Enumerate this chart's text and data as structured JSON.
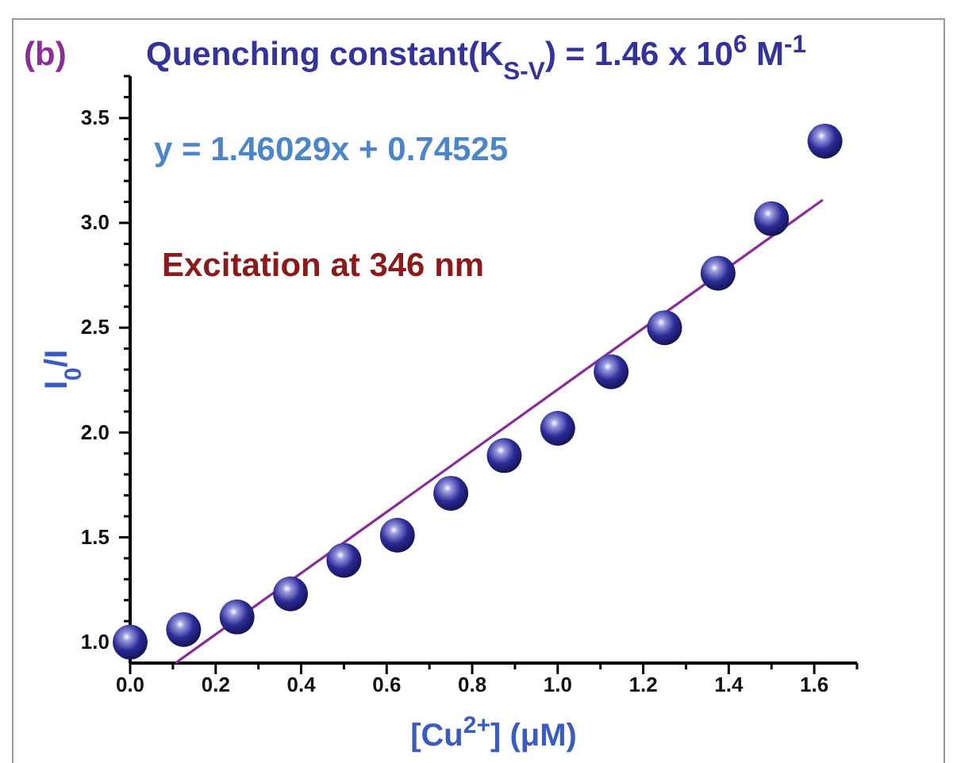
{
  "chart_data": {
    "type": "scatter",
    "title": "Quenching constant(K$_{S-V}$) = 1.46 x 10$^{6}$  M$^{-1}$",
    "xlabel": "[Cu$^{2+}$] (μM)",
    "ylabel": "I$_{0}$/I",
    "annotations": [
      "(b)",
      "y = 1.46029x + 0.74525",
      "Excitation at 346 nm"
    ],
    "xlim": [
      0,
      1.7
    ],
    "ylim": [
      0.9,
      3.7
    ],
    "xticks": [
      {
        "value": 0,
        "label": "0.0"
      },
      {
        "value": 0.1,
        "label": null
      },
      {
        "value": 0.2,
        "label": "0.2"
      },
      {
        "value": 0.3,
        "label": null
      },
      {
        "value": 0.4,
        "label": "0.4"
      },
      {
        "value": 0.5,
        "label": null
      },
      {
        "value": 0.6,
        "label": "0.6"
      },
      {
        "value": 0.7,
        "label": null
      },
      {
        "value": 0.8,
        "label": "0.8"
      },
      {
        "value": 0.9,
        "label": null
      },
      {
        "value": 1,
        "label": "1.0"
      },
      {
        "value": 1.1,
        "label": null
      },
      {
        "value": 1.2,
        "label": "1.2"
      },
      {
        "value": 1.3,
        "label": null
      },
      {
        "value": 1.4,
        "label": "1.4"
      },
      {
        "value": 1.5,
        "label": null
      },
      {
        "value": 1.6,
        "label": "1.6"
      },
      {
        "value": 1.7,
        "label": null
      }
    ],
    "yticks": [
      {
        "value": 1,
        "label": "1.0"
      },
      {
        "value": 1.1,
        "label": null
      },
      {
        "value": 1.2,
        "label": null
      },
      {
        "value": 1.3,
        "label": null
      },
      {
        "value": 1.4,
        "label": null
      },
      {
        "value": 1.5,
        "label": "1.5"
      },
      {
        "value": 1.6,
        "label": null
      },
      {
        "value": 1.7,
        "label": null
      },
      {
        "value": 1.8,
        "label": null
      },
      {
        "value": 1.9,
        "label": null
      },
      {
        "value": 2,
        "label": "2.0"
      },
      {
        "value": 2.1,
        "label": null
      },
      {
        "value": 2.2,
        "label": null
      },
      {
        "value": 2.3,
        "label": null
      },
      {
        "value": 2.4,
        "label": null
      },
      {
        "value": 2.5,
        "label": "2.5"
      },
      {
        "value": 2.6,
        "label": null
      },
      {
        "value": 2.7,
        "label": null
      },
      {
        "value": 2.8,
        "label": null
      },
      {
        "value": 2.9,
        "label": null
      },
      {
        "value": 3,
        "label": "3.0"
      },
      {
        "value": 3.1,
        "label": null
      },
      {
        "value": 3.2,
        "label": null
      },
      {
        "value": 3.3,
        "label": null
      },
      {
        "value": 3.4,
        "label": null
      },
      {
        "value": 3.5,
        "label": "3.5"
      },
      {
        "value": 3.6,
        "label": null
      },
      {
        "value": 3.7,
        "label": null
      }
    ],
    "grid": false,
    "series": [
      {
        "color": "#2b2b96",
        "marker": "circle",
        "x": [
          0,
          0.125,
          0.25,
          0.375,
          0.5,
          0.625,
          0.75,
          0.875,
          1,
          1.125,
          1.25,
          1.375,
          1.5,
          1.625
        ],
        "values": [
          1.0,
          1.06,
          1.12,
          1.23,
          1.39,
          1.51,
          1.71,
          1.89,
          2.02,
          2.29,
          2.5,
          2.76,
          3.02,
          3.39
        ]
      },
      {
        "type": "line",
        "color": "#8b2a9b",
        "marker": "none",
        "line_style": "solid",
        "x": [
          0.106,
          1.62
        ],
        "values": [
          0.9,
          3.11
        ]
      }
    ]
  }
}
